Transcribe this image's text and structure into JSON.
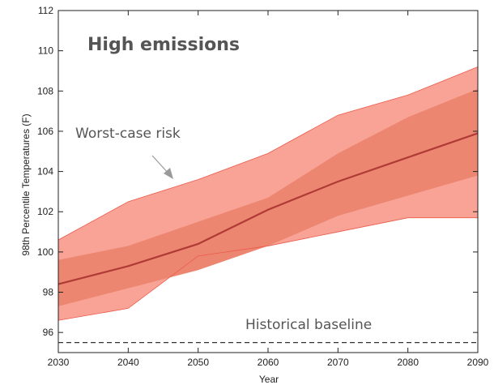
{
  "chart_data": {
    "type": "area",
    "title": "High emissions",
    "xlabel": "Year",
    "ylabel": "98th Percentile Temperatures (F)",
    "xlim": [
      2030,
      2090
    ],
    "ylim": [
      95,
      112
    ],
    "xticks": [
      2030,
      2040,
      2050,
      2060,
      2070,
      2080,
      2090
    ],
    "yticks": [
      96,
      98,
      100,
      102,
      104,
      106,
      108,
      110,
      112
    ],
    "grid": false,
    "x": [
      2030,
      2040,
      2050,
      2060,
      2070,
      2080,
      2090
    ],
    "outer_band": {
      "upper": [
        100.6,
        102.5,
        103.6,
        104.9,
        106.8,
        107.8,
        109.2
      ],
      "lower": [
        96.6,
        97.2,
        99.8,
        100.3,
        101.0,
        101.7,
        101.7
      ]
    },
    "inner_band": {
      "upper": [
        99.6,
        100.3,
        101.5,
        102.7,
        104.9,
        106.7,
        108.1
      ],
      "lower": [
        97.3,
        98.2,
        99.1,
        100.3,
        101.8,
        102.8,
        103.8
      ]
    },
    "median": [
      98.4,
      99.3,
      100.4,
      102.1,
      103.5,
      104.7,
      105.9
    ],
    "baseline": 95.5,
    "annotations": {
      "worst_case": "Worst-case risk",
      "baseline": "Historical baseline"
    },
    "colors": {
      "outer_band": "#f8a396",
      "inner_band": "#ec8671",
      "band_edge": "#ec5a4a",
      "median": "#b03a36",
      "baseline": "#333333",
      "arrow": "#9a9a9a"
    }
  }
}
